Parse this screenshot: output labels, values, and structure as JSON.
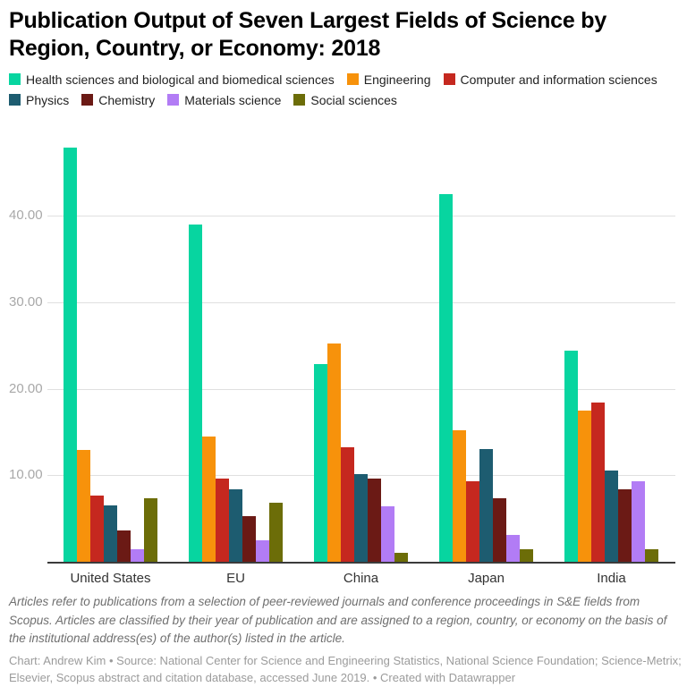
{
  "header": {
    "title": "Publication Output of Seven Largest Fields of Science by Region, Country, or Economy: 2018"
  },
  "chart_data": {
    "type": "bar",
    "title": "Publication Output of Seven Largest Fields of Science by Region, Country, or Economy: 2018",
    "categories": [
      "United States",
      "EU",
      "China",
      "Japan",
      "India"
    ],
    "series": [
      {
        "name": "Health sciences and biological and biomedical sciences",
        "color": "#07d5a0",
        "values": [
          47.9,
          39.0,
          22.9,
          42.5,
          24.4
        ]
      },
      {
        "name": "Engineering",
        "color": "#f7920b",
        "values": [
          12.9,
          14.5,
          25.3,
          15.2,
          17.5
        ]
      },
      {
        "name": "Computer and information sciences",
        "color": "#c5281f",
        "values": [
          7.7,
          9.6,
          13.2,
          9.3,
          18.4
        ]
      },
      {
        "name": "Physics",
        "color": "#1d5c70",
        "values": [
          6.5,
          8.4,
          10.1,
          13.0,
          10.6
        ]
      },
      {
        "name": "Chemistry",
        "color": "#6b1a15",
        "values": [
          3.6,
          5.3,
          9.6,
          7.3,
          8.4
        ]
      },
      {
        "name": "Materials science",
        "color": "#b27cf5",
        "values": [
          1.4,
          2.5,
          6.4,
          3.1,
          9.3
        ]
      },
      {
        "name": "Social sciences",
        "color": "#6c6d08",
        "values": [
          7.3,
          6.8,
          1.0,
          1.4,
          1.5
        ]
      }
    ],
    "xlabel": "",
    "ylabel": "",
    "ylim": [
      0,
      50.5
    ],
    "yticks": [
      {
        "value": 10,
        "label": "10.00"
      },
      {
        "value": 20,
        "label": "20.00"
      },
      {
        "value": 30,
        "label": "30.00"
      },
      {
        "value": 40,
        "label": "40.00"
      }
    ],
    "grid": true,
    "legend_position": "top"
  },
  "footer": {
    "notes": "Articles refer to publications from a selection of peer-reviewed journals and conference proceedings in S&E fields from Scopus. Articles are classified by their year of publication and are assigned to a region, country, or economy on the basis of the institutional address(es) of the author(s) listed in the article.",
    "byline": "Chart: Andrew Kim • Source: National Center for Science and Engineering Statistics, National Science Foundation; Science-Metrix; Elsevier, Scopus abstract and citation database, accessed June 2019. • Created with Datawrapper"
  }
}
